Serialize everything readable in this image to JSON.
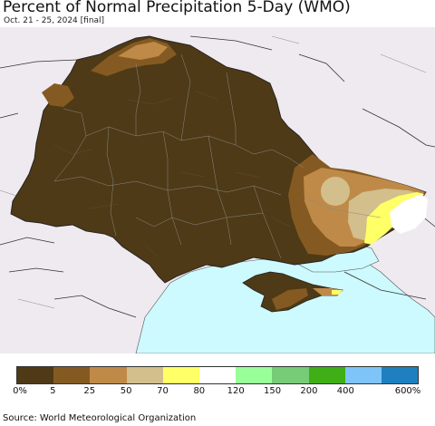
{
  "header": {
    "title": "Percent of Normal Precipitation 5-Day (WMO)",
    "subtitle": "Oct. 21 - 25, 2024 [final]"
  },
  "legend": {
    "colors": [
      "#4e3a16",
      "#855a22",
      "#bf8a48",
      "#d2bf8c",
      "#ffff66",
      "#ffffff",
      "#99ff99",
      "#77cc77",
      "#3fae17",
      "#7fc4f9",
      "#1f7fbf"
    ],
    "labels": [
      "0%",
      "5",
      "25",
      "50",
      "70",
      "80",
      "120",
      "150",
      "200",
      "400",
      "600%"
    ]
  },
  "footer": {
    "source": "Source: World Meteorological Organization"
  },
  "map_colors": {
    "background": "#efeaf0",
    "sea": "#cdfafe",
    "very_dry": "#4e3a16",
    "dry": "#855a22",
    "below": "#bf8a48",
    "tan": "#d2bf8c",
    "yellow": "#ffff66",
    "normal": "#ffffff"
  }
}
